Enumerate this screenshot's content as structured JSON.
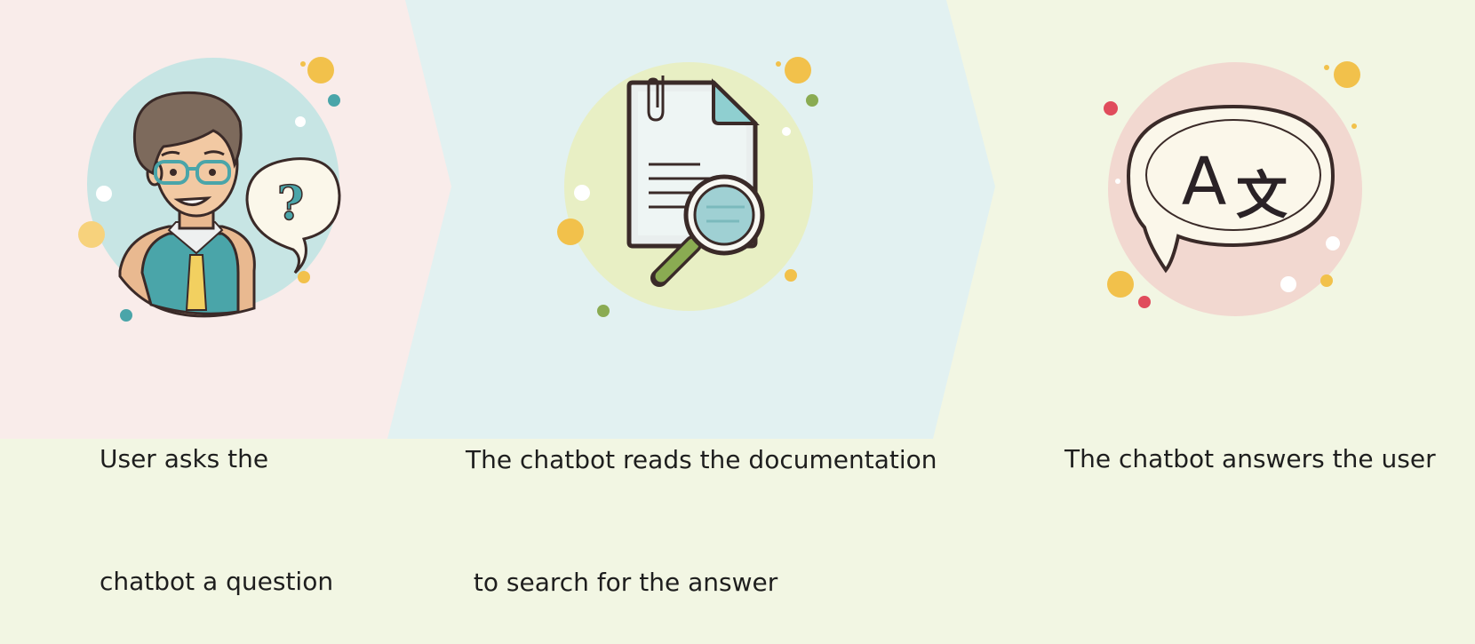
{
  "steps": [
    {
      "line1": "User asks the",
      "line2": "chatbot a question",
      "icon": "user-question-icon",
      "bg": "#f9ecea"
    },
    {
      "line1": "The chatbot reads the documentation",
      "line2": " to search for the answer",
      "icon": "document-search-icon",
      "bg": "#e2f1f1"
    },
    {
      "line1": "The chatbot answers the user",
      "line2": "",
      "icon": "translate-speech-bubble-icon",
      "bg": "#f2f6e3"
    }
  ],
  "icon_glyphs": {
    "question": "?",
    "translate_latin": "A",
    "translate_cjk": "文"
  },
  "colors": {
    "yellow": "#f2c14b",
    "teal": "#4aa5a9",
    "green": "#8aab52",
    "red": "#e04c5c",
    "outline": "#3a2a28"
  }
}
